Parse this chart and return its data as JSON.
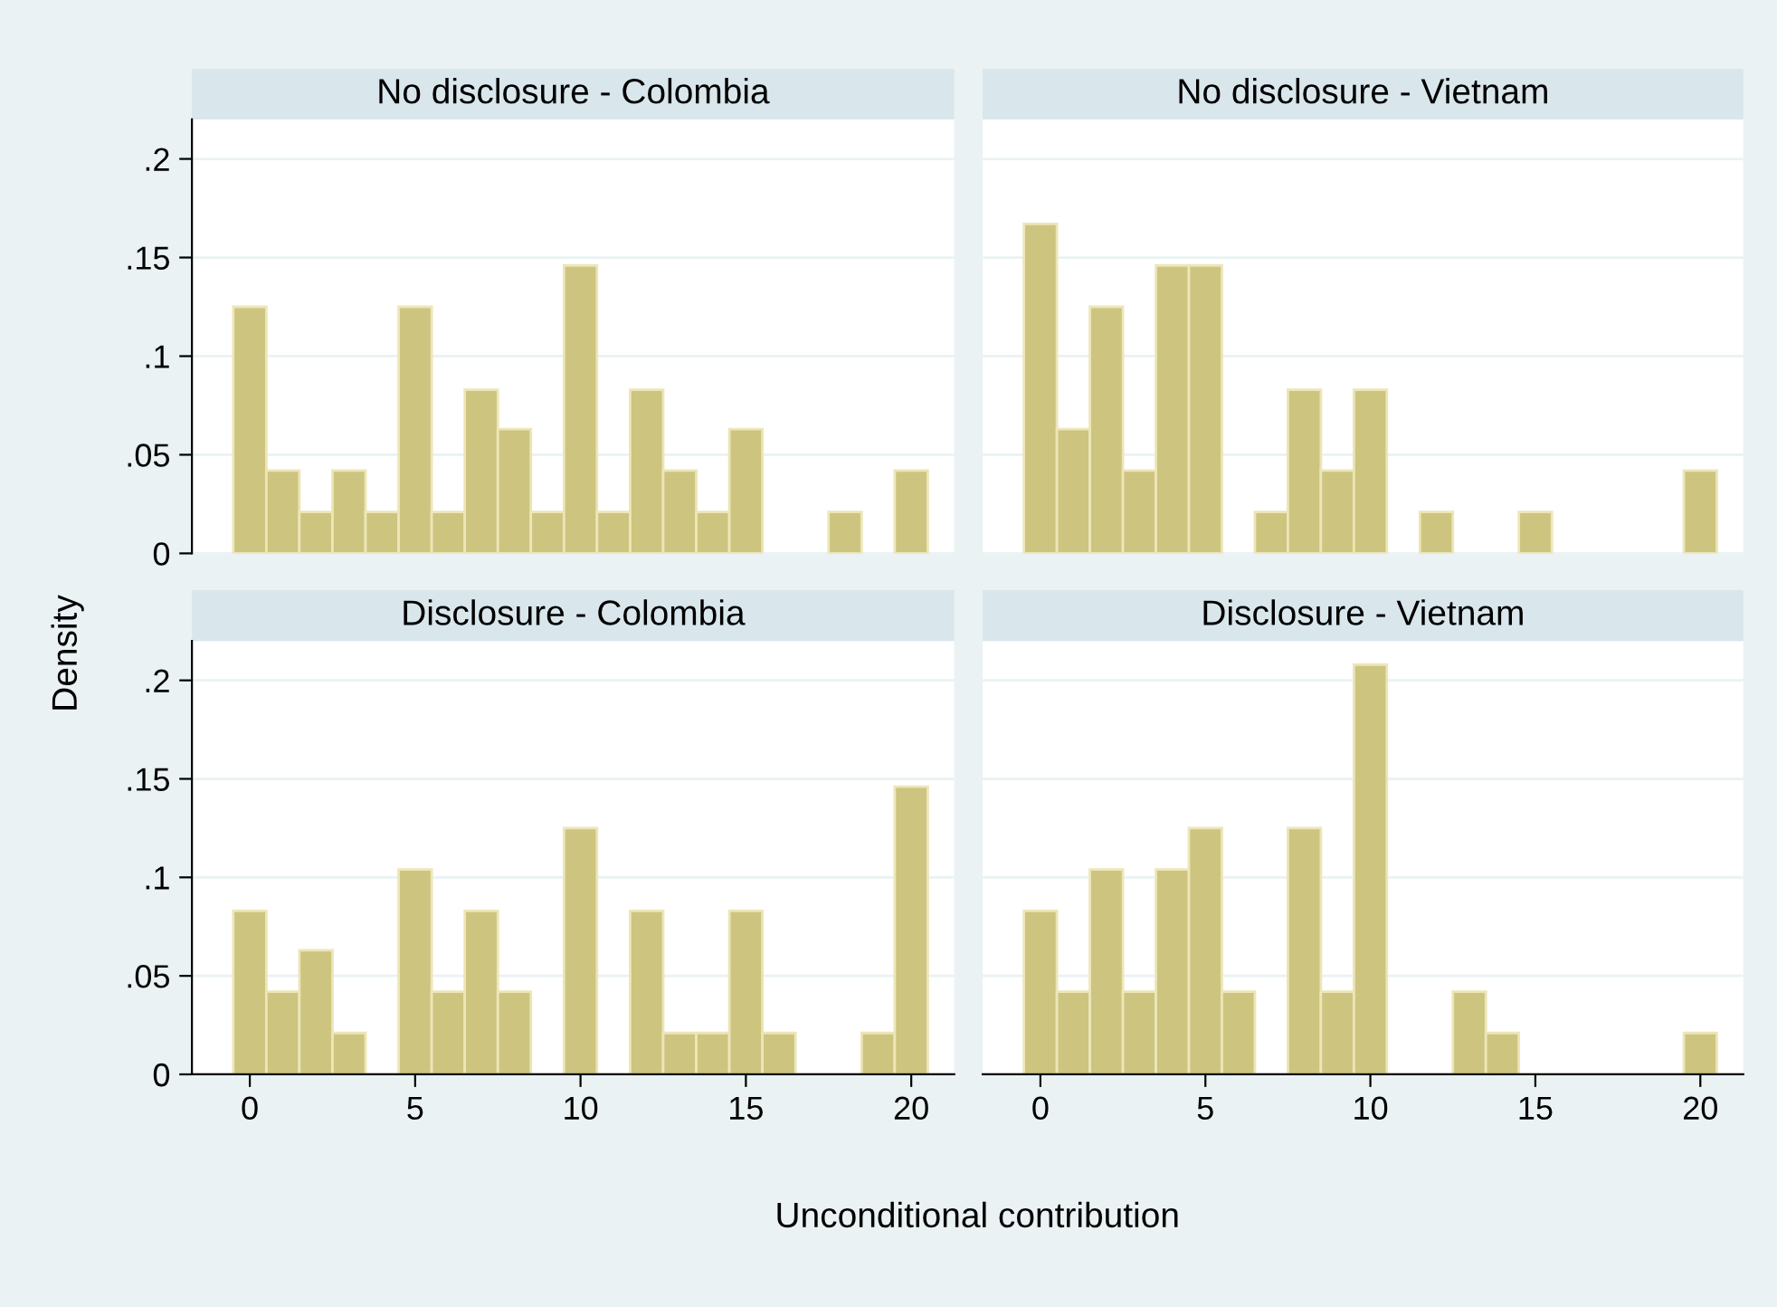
{
  "chart_data": [
    {
      "type": "histogram",
      "title": "No disclosure - Colombia",
      "ylabel": "Density",
      "bins": [
        -0.5,
        0.5,
        1.5,
        2.5,
        3.5,
        4.5,
        5.5,
        6.5,
        7.5,
        8.5,
        9.5,
        10.5,
        11.5,
        12.5,
        13.5,
        14.5,
        15.5,
        16.5,
        17.5,
        18.5,
        19.5,
        20.5
      ],
      "values": [
        0.125,
        0.042,
        0.021,
        0.042,
        0.021,
        0.125,
        0.021,
        0.083,
        0.063,
        0.021,
        0.146,
        0.021,
        0.083,
        0.042,
        0.021,
        0.063,
        0,
        0,
        0.021,
        0,
        0.042
      ],
      "color": "#cdc47f",
      "xlim": [
        -1.75,
        21.3
      ],
      "ylim": [
        0,
        0.22
      ],
      "xticks": [
        0,
        5,
        10,
        15,
        20
      ],
      "yticks": [
        0,
        {
          "value": 0.05,
          "label": ".05"
        },
        {
          "value": 0.1,
          "label": ".1"
        },
        {
          "value": 0.15,
          "label": ".15"
        },
        {
          "value": 0.2,
          "label": ".2"
        }
      ],
      "grid": "y",
      "tick_labels": "y"
    },
    {
      "type": "histogram",
      "title": "No disclosure - Vietnam",
      "bins": [
        -0.5,
        0.5,
        1.5,
        2.5,
        3.5,
        4.5,
        5.5,
        6.5,
        7.5,
        8.5,
        9.5,
        10.5,
        11.5,
        12.5,
        13.5,
        14.5,
        15.5,
        16.5,
        17.5,
        18.5,
        19.5,
        20.5
      ],
      "values": [
        0.167,
        0.063,
        0.125,
        0.042,
        0.146,
        0.146,
        0,
        0.021,
        0.083,
        0.042,
        0.083,
        0,
        0.021,
        0,
        0,
        0.021,
        0,
        0,
        0,
        0,
        0.042
      ],
      "color": "#cdc47f",
      "xlim": [
        -1.75,
        21.3
      ],
      "ylim": [
        0,
        0.22
      ],
      "xticks": [
        0,
        5,
        10,
        15,
        20
      ],
      "yticks": [
        0,
        0.05,
        0.1,
        0.15,
        0.2
      ],
      "grid": "y",
      "tick_labels": false
    },
    {
      "type": "histogram",
      "title": "Disclosure - Colombia",
      "xlabel": "Unconditional contribution",
      "bins": [
        -0.5,
        0.5,
        1.5,
        2.5,
        3.5,
        4.5,
        5.5,
        6.5,
        7.5,
        8.5,
        9.5,
        10.5,
        11.5,
        12.5,
        13.5,
        14.5,
        15.5,
        16.5,
        17.5,
        18.5,
        19.5,
        20.5
      ],
      "values": [
        0.083,
        0.042,
        0.063,
        0.021,
        0,
        0.104,
        0.042,
        0.083,
        0.042,
        0,
        0.125,
        0,
        0.083,
        0.021,
        0.021,
        0.083,
        0.021,
        0,
        0,
        0.021,
        0.146
      ],
      "color": "#cdc47f",
      "xlim": [
        -1.75,
        21.3
      ],
      "ylim": [
        0,
        0.22
      ],
      "xticks": [
        0,
        5,
        10,
        15,
        20
      ],
      "yticks": [
        0,
        {
          "value": 0.05,
          "label": ".05"
        },
        {
          "value": 0.1,
          "label": ".1"
        },
        {
          "value": 0.15,
          "label": ".15"
        },
        {
          "value": 0.2,
          "label": ".2"
        }
      ],
      "grid": "y"
    },
    {
      "type": "histogram",
      "title": "Disclosure - Vietnam",
      "bins": [
        -0.5,
        0.5,
        1.5,
        2.5,
        3.5,
        4.5,
        5.5,
        6.5,
        7.5,
        8.5,
        9.5,
        10.5,
        11.5,
        12.5,
        13.5,
        14.5,
        15.5,
        16.5,
        17.5,
        18.5,
        19.5,
        20.5
      ],
      "values": [
        0.083,
        0.042,
        0.104,
        0.042,
        0.104,
        0.125,
        0.042,
        0,
        0.125,
        0.042,
        0.208,
        0,
        0,
        0.042,
        0.021,
        0,
        0,
        0,
        0,
        0,
        0.021
      ],
      "color": "#cdc47f",
      "xlim": [
        -1.75,
        21.3
      ],
      "ylim": [
        0,
        0.22
      ],
      "xticks": [
        0,
        5,
        10,
        15,
        20
      ],
      "yticks": [
        0,
        0.05,
        0.1,
        0.15,
        0.2
      ],
      "grid": "y",
      "tick_labels": "x"
    }
  ]
}
